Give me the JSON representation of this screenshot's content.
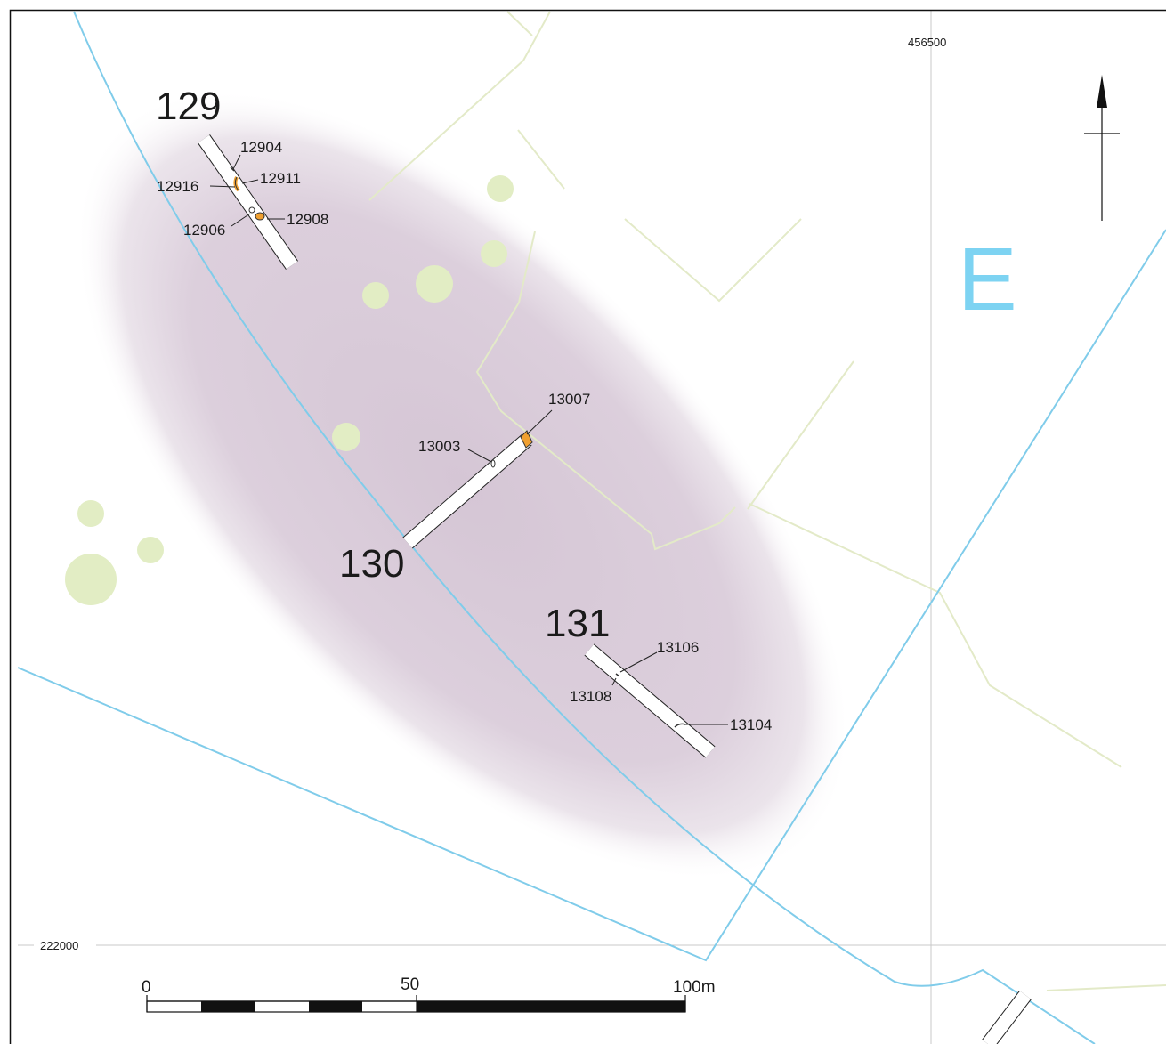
{
  "grid": {
    "easting_label": "456500",
    "northing_label": "222000"
  },
  "zone_label": "E",
  "trenches": [
    {
      "label": "129",
      "features": [
        "12904",
        "12911",
        "12916",
        "12908",
        "12906"
      ]
    },
    {
      "label": "130",
      "features": [
        "13007",
        "13003"
      ]
    },
    {
      "label": "131",
      "features": [
        "13106",
        "13108",
        "13104"
      ]
    }
  ],
  "scale_bar": {
    "tick_0": "0",
    "tick_50": "50",
    "tick_100": "100m"
  },
  "north_arrow": {
    "icon": "north-arrow-icon"
  },
  "colors": {
    "cropmark_zone": "#d6c8d6",
    "boundary_line": "#80ccea",
    "field_line": "#e3eac8",
    "tree": "#e2edc4",
    "grid_line": "#c8c8c8",
    "zone_label": "#7dd3f2",
    "feature_fill": "#f0a030"
  }
}
